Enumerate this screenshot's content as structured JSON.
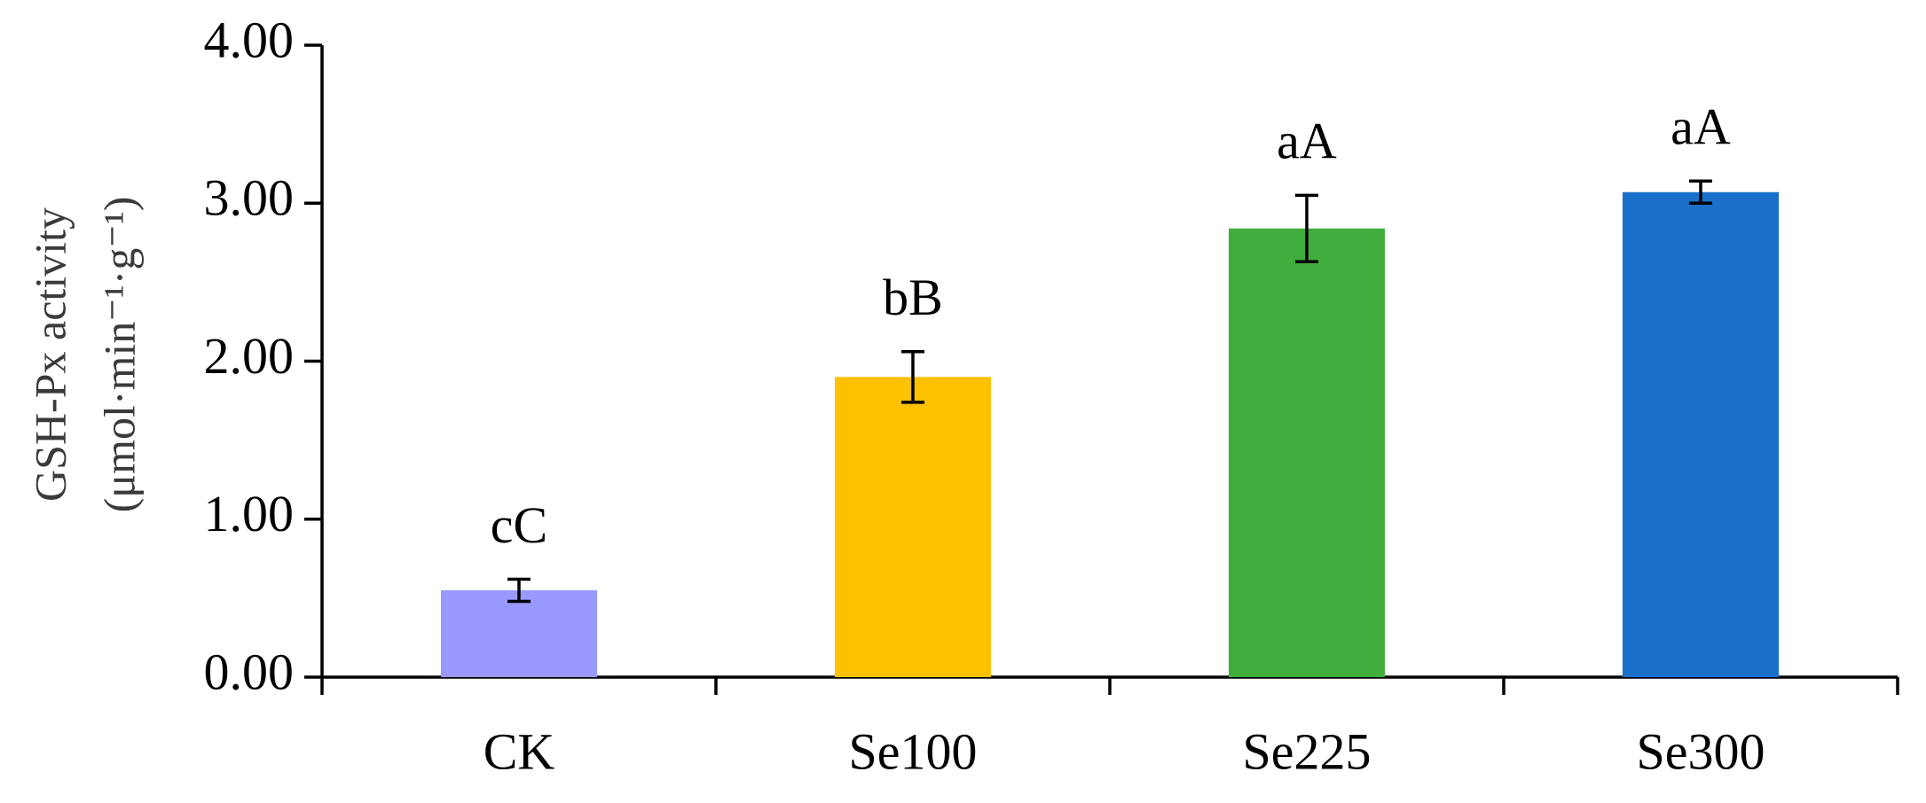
{
  "chart_data": {
    "type": "bar",
    "y_label_lines": [
      "GSH-Px activity",
      "(μmol·min⁻¹·g⁻¹)"
    ],
    "categories": [
      "CK",
      "Se100",
      "Se225",
      "Se300"
    ],
    "values": [
      0.55,
      1.9,
      2.84,
      3.07
    ],
    "errors": [
      0.07,
      0.16,
      0.21,
      0.07
    ],
    "labels": [
      "cC",
      "bB",
      "aA",
      "aA"
    ],
    "colors": [
      "#9999ff",
      "#ffc000",
      "#40ad3c",
      "#1a6fc8"
    ],
    "ylim": [
      0,
      4
    ],
    "yticks": [
      {
        "value": 0,
        "label": "0.00"
      },
      {
        "value": 1,
        "label": "1.00"
      },
      {
        "value": 2,
        "label": "2.00"
      },
      {
        "value": 3,
        "label": "3.00"
      },
      {
        "value": 4,
        "label": "4.00"
      }
    ]
  }
}
